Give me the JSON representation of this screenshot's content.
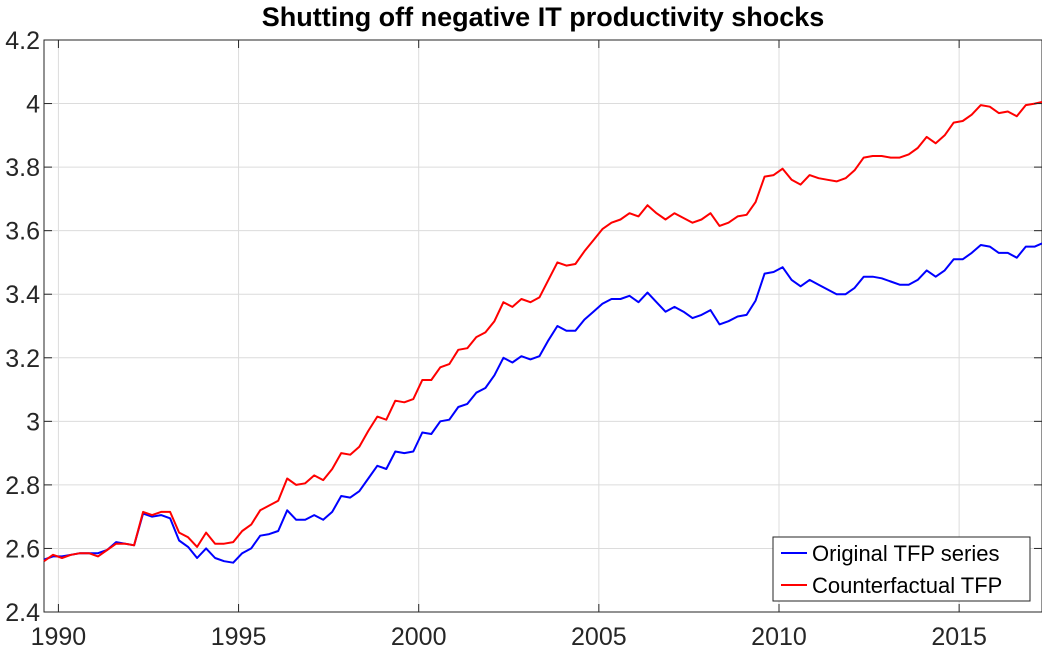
{
  "chart_data": {
    "type": "line",
    "title": "Shutting off negative IT productivity shocks",
    "xlabel": "",
    "ylabel": "",
    "xlim": [
      1989.6,
      2017.3
    ],
    "ylim": [
      2.4,
      4.2
    ],
    "xticks": [
      1990,
      1995,
      2000,
      2005,
      2010,
      2015
    ],
    "yticks": [
      2.4,
      2.6,
      2.8,
      3.0,
      3.2,
      3.4,
      3.6,
      3.8,
      4.0,
      4.2
    ],
    "ytick_labels": [
      "2.4",
      "2.6",
      "2.8",
      "3",
      "3.2",
      "3.4",
      "3.6",
      "3.8",
      "4",
      "4.2"
    ],
    "grid": true,
    "legend_position": "bottom-right",
    "series": [
      {
        "name": "Original TFP series",
        "color": "#0000ff",
        "points": [
          [
            1989.6,
            2.565
          ],
          [
            1989.85,
            2.575
          ],
          [
            1990.1,
            2.575
          ],
          [
            1990.35,
            2.58
          ],
          [
            1990.6,
            2.585
          ],
          [
            1990.85,
            2.585
          ],
          [
            1991.1,
            2.585
          ],
          [
            1991.35,
            2.595
          ],
          [
            1991.6,
            2.62
          ],
          [
            1991.85,
            2.615
          ],
          [
            1992.1,
            2.61
          ],
          [
            1992.35,
            2.71
          ],
          [
            1992.6,
            2.7
          ],
          [
            1992.85,
            2.705
          ],
          [
            1993.1,
            2.695
          ],
          [
            1993.35,
            2.625
          ],
          [
            1993.6,
            2.605
          ],
          [
            1993.85,
            2.57
          ],
          [
            1994.1,
            2.6
          ],
          [
            1994.35,
            2.57
          ],
          [
            1994.6,
            2.56
          ],
          [
            1994.85,
            2.555
          ],
          [
            1995.1,
            2.585
          ],
          [
            1995.35,
            2.6
          ],
          [
            1995.6,
            2.64
          ],
          [
            1995.85,
            2.645
          ],
          [
            1996.1,
            2.655
          ],
          [
            1996.35,
            2.72
          ],
          [
            1996.6,
            2.69
          ],
          [
            1996.85,
            2.69
          ],
          [
            1997.1,
            2.705
          ],
          [
            1997.35,
            2.69
          ],
          [
            1997.6,
            2.715
          ],
          [
            1997.85,
            2.765
          ],
          [
            1998.1,
            2.76
          ],
          [
            1998.35,
            2.78
          ],
          [
            1998.6,
            2.82
          ],
          [
            1998.85,
            2.86
          ],
          [
            1999.1,
            2.85
          ],
          [
            1999.35,
            2.905
          ],
          [
            1999.6,
            2.9
          ],
          [
            1999.85,
            2.905
          ],
          [
            2000.1,
            2.965
          ],
          [
            2000.35,
            2.96
          ],
          [
            2000.6,
            3.0
          ],
          [
            2000.85,
            3.005
          ],
          [
            2001.1,
            3.045
          ],
          [
            2001.35,
            3.055
          ],
          [
            2001.6,
            3.09
          ],
          [
            2001.85,
            3.105
          ],
          [
            2002.1,
            3.145
          ],
          [
            2002.35,
            3.2
          ],
          [
            2002.6,
            3.185
          ],
          [
            2002.85,
            3.205
          ],
          [
            2003.1,
            3.195
          ],
          [
            2003.35,
            3.205
          ],
          [
            2003.6,
            3.255
          ],
          [
            2003.85,
            3.3
          ],
          [
            2004.1,
            3.285
          ],
          [
            2004.35,
            3.285
          ],
          [
            2004.6,
            3.32
          ],
          [
            2004.85,
            3.345
          ],
          [
            2005.1,
            3.37
          ],
          [
            2005.35,
            3.385
          ],
          [
            2005.6,
            3.385
          ],
          [
            2005.85,
            3.395
          ],
          [
            2006.1,
            3.375
          ],
          [
            2006.35,
            3.405
          ],
          [
            2006.6,
            3.375
          ],
          [
            2006.85,
            3.345
          ],
          [
            2007.1,
            3.36
          ],
          [
            2007.35,
            3.345
          ],
          [
            2007.6,
            3.325
          ],
          [
            2007.85,
            3.335
          ],
          [
            2008.1,
            3.35
          ],
          [
            2008.35,
            3.305
          ],
          [
            2008.6,
            3.315
          ],
          [
            2008.85,
            3.33
          ],
          [
            2009.1,
            3.335
          ],
          [
            2009.35,
            3.38
          ],
          [
            2009.6,
            3.465
          ],
          [
            2009.85,
            3.47
          ],
          [
            2010.1,
            3.485
          ],
          [
            2010.35,
            3.445
          ],
          [
            2010.6,
            3.425
          ],
          [
            2010.85,
            3.445
          ],
          [
            2011.1,
            3.43
          ],
          [
            2011.35,
            3.415
          ],
          [
            2011.6,
            3.4
          ],
          [
            2011.85,
            3.4
          ],
          [
            2012.1,
            3.42
          ],
          [
            2012.35,
            3.455
          ],
          [
            2012.6,
            3.455
          ],
          [
            2012.85,
            3.45
          ],
          [
            2013.1,
            3.44
          ],
          [
            2013.35,
            3.43
          ],
          [
            2013.6,
            3.43
          ],
          [
            2013.85,
            3.445
          ],
          [
            2014.1,
            3.475
          ],
          [
            2014.35,
            3.455
          ],
          [
            2014.6,
            3.475
          ],
          [
            2014.85,
            3.51
          ],
          [
            2015.1,
            3.51
          ],
          [
            2015.35,
            3.53
          ],
          [
            2015.6,
            3.555
          ],
          [
            2015.85,
            3.55
          ],
          [
            2016.1,
            3.53
          ],
          [
            2016.35,
            3.53
          ],
          [
            2016.6,
            3.515
          ],
          [
            2016.85,
            3.55
          ],
          [
            2017.1,
            3.55
          ],
          [
            2017.3,
            3.56
          ]
        ]
      },
      {
        "name": "Counterfactual TFP",
        "color": "#ff0000",
        "points": [
          [
            1989.6,
            2.56
          ],
          [
            1989.85,
            2.58
          ],
          [
            1990.1,
            2.57
          ],
          [
            1990.35,
            2.58
          ],
          [
            1990.6,
            2.585
          ],
          [
            1990.85,
            2.585
          ],
          [
            1991.1,
            2.575
          ],
          [
            1991.35,
            2.595
          ],
          [
            1991.6,
            2.615
          ],
          [
            1991.85,
            2.615
          ],
          [
            1992.1,
            2.61
          ],
          [
            1992.35,
            2.715
          ],
          [
            1992.6,
            2.705
          ],
          [
            1992.85,
            2.715
          ],
          [
            1993.1,
            2.715
          ],
          [
            1993.35,
            2.65
          ],
          [
            1993.6,
            2.635
          ],
          [
            1993.85,
            2.605
          ],
          [
            1994.1,
            2.65
          ],
          [
            1994.35,
            2.615
          ],
          [
            1994.6,
            2.615
          ],
          [
            1994.85,
            2.62
          ],
          [
            1995.1,
            2.655
          ],
          [
            1995.35,
            2.675
          ],
          [
            1995.6,
            2.72
          ],
          [
            1995.85,
            2.735
          ],
          [
            1996.1,
            2.75
          ],
          [
            1996.35,
            2.82
          ],
          [
            1996.6,
            2.8
          ],
          [
            1996.85,
            2.805
          ],
          [
            1997.1,
            2.83
          ],
          [
            1997.35,
            2.815
          ],
          [
            1997.6,
            2.85
          ],
          [
            1997.85,
            2.9
          ],
          [
            1998.1,
            2.895
          ],
          [
            1998.35,
            2.92
          ],
          [
            1998.6,
            2.97
          ],
          [
            1998.85,
            3.015
          ],
          [
            1999.1,
            3.005
          ],
          [
            1999.35,
            3.065
          ],
          [
            1999.6,
            3.06
          ],
          [
            1999.85,
            3.07
          ],
          [
            2000.1,
            3.13
          ],
          [
            2000.35,
            3.13
          ],
          [
            2000.6,
            3.17
          ],
          [
            2000.85,
            3.18
          ],
          [
            2001.1,
            3.225
          ],
          [
            2001.35,
            3.23
          ],
          [
            2001.6,
            3.265
          ],
          [
            2001.85,
            3.28
          ],
          [
            2002.1,
            3.315
          ],
          [
            2002.35,
            3.375
          ],
          [
            2002.6,
            3.36
          ],
          [
            2002.85,
            3.385
          ],
          [
            2003.1,
            3.375
          ],
          [
            2003.35,
            3.39
          ],
          [
            2003.6,
            3.445
          ],
          [
            2003.85,
            3.5
          ],
          [
            2004.1,
            3.49
          ],
          [
            2004.35,
            3.495
          ],
          [
            2004.6,
            3.535
          ],
          [
            2004.85,
            3.57
          ],
          [
            2005.1,
            3.605
          ],
          [
            2005.35,
            3.625
          ],
          [
            2005.6,
            3.635
          ],
          [
            2005.85,
            3.655
          ],
          [
            2006.1,
            3.645
          ],
          [
            2006.35,
            3.68
          ],
          [
            2006.6,
            3.655
          ],
          [
            2006.85,
            3.635
          ],
          [
            2007.1,
            3.655
          ],
          [
            2007.35,
            3.64
          ],
          [
            2007.6,
            3.625
          ],
          [
            2007.85,
            3.635
          ],
          [
            2008.1,
            3.655
          ],
          [
            2008.35,
            3.615
          ],
          [
            2008.6,
            3.625
          ],
          [
            2008.85,
            3.645
          ],
          [
            2009.1,
            3.65
          ],
          [
            2009.35,
            3.69
          ],
          [
            2009.6,
            3.77
          ],
          [
            2009.85,
            3.775
          ],
          [
            2010.1,
            3.795
          ],
          [
            2010.35,
            3.76
          ],
          [
            2010.6,
            3.745
          ],
          [
            2010.85,
            3.775
          ],
          [
            2011.1,
            3.765
          ],
          [
            2011.35,
            3.76
          ],
          [
            2011.6,
            3.755
          ],
          [
            2011.85,
            3.765
          ],
          [
            2012.1,
            3.79
          ],
          [
            2012.35,
            3.83
          ],
          [
            2012.6,
            3.835
          ],
          [
            2012.85,
            3.835
          ],
          [
            2013.1,
            3.83
          ],
          [
            2013.35,
            3.83
          ],
          [
            2013.6,
            3.84
          ],
          [
            2013.85,
            3.86
          ],
          [
            2014.1,
            3.895
          ],
          [
            2014.35,
            3.875
          ],
          [
            2014.6,
            3.9
          ],
          [
            2014.85,
            3.94
          ],
          [
            2015.1,
            3.945
          ],
          [
            2015.35,
            3.965
          ],
          [
            2015.6,
            3.995
          ],
          [
            2015.85,
            3.99
          ],
          [
            2016.1,
            3.97
          ],
          [
            2016.35,
            3.975
          ],
          [
            2016.6,
            3.96
          ],
          [
            2016.85,
            3.995
          ],
          [
            2017.1,
            4.0
          ],
          [
            2017.3,
            4.005
          ]
        ]
      }
    ]
  }
}
